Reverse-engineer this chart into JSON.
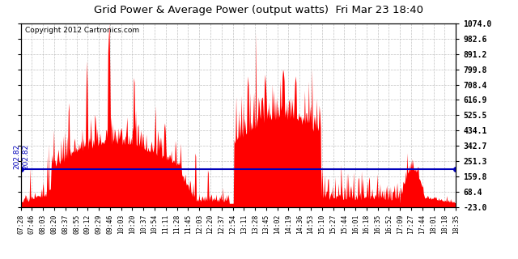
{
  "title": "Grid Power & Average Power (output watts)  Fri Mar 23 18:40",
  "copyright": "Copyright 2012 Cartronics.com",
  "avg_value": 202.82,
  "y_min": -23.0,
  "y_max": 1074.0,
  "y_ticks": [
    1074.0,
    982.6,
    891.2,
    799.8,
    708.4,
    616.9,
    525.5,
    434.1,
    342.7,
    251.3,
    159.8,
    68.4,
    -23.0
  ],
  "bar_color": "#ff0000",
  "avg_line_color": "#0000bb",
  "background_color": "#ffffff",
  "grid_color": "#bbbbbb",
  "x_ticks": [
    "07:28",
    "07:46",
    "08:03",
    "08:20",
    "08:37",
    "08:55",
    "09:12",
    "09:29",
    "09:46",
    "10:03",
    "10:20",
    "10:37",
    "10:54",
    "11:11",
    "11:28",
    "11:45",
    "12:03",
    "12:20",
    "12:37",
    "12:54",
    "13:11",
    "13:28",
    "13:45",
    "14:02",
    "14:19",
    "14:36",
    "14:53",
    "15:10",
    "15:27",
    "15:44",
    "16:01",
    "16:18",
    "16:35",
    "16:52",
    "17:09",
    "17:27",
    "17:44",
    "18:01",
    "18:18",
    "18:35"
  ],
  "n_points": 660
}
